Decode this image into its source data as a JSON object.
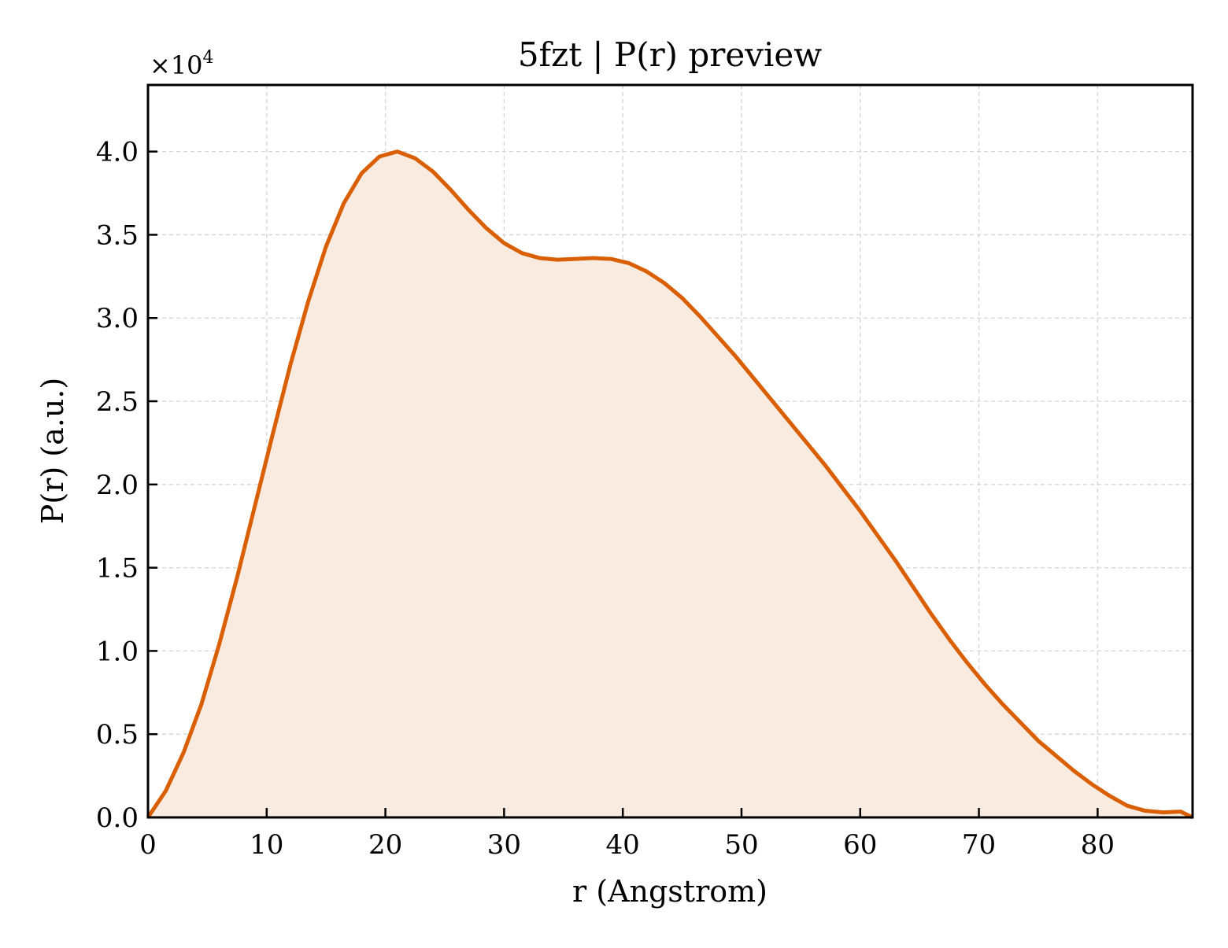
{
  "chart_data": {
    "type": "area",
    "title": "5fzt | P(r) preview",
    "xlabel": "r (Angstrom)",
    "ylabel": "P(r) (a.u.)",
    "y_multiplier": "×10",
    "y_multiplier_exp": "4",
    "xlim": [
      0,
      88
    ],
    "ylim": [
      0,
      4.4
    ],
    "y_scale_factor": 10000,
    "grid": true,
    "x_ticks": [
      0,
      10,
      20,
      30,
      40,
      50,
      60,
      70,
      80
    ],
    "x_tick_labels": [
      "0",
      "10",
      "20",
      "30",
      "40",
      "50",
      "60",
      "70",
      "80"
    ],
    "y_ticks": [
      0,
      0.5,
      1.0,
      1.5,
      2.0,
      2.5,
      3.0,
      3.5,
      4.0
    ],
    "y_tick_labels": [
      "0.0",
      "0.5",
      "1.0",
      "1.5",
      "2.0",
      "2.5",
      "3.0",
      "3.5",
      "4.0"
    ],
    "series": [
      {
        "line_color": "#d95f02",
        "fill_color": "#f9ebe0",
        "x": [
          0,
          1.5,
          3,
          4.5,
          6,
          7.5,
          9,
          10.5,
          12,
          13.5,
          15,
          16.5,
          18,
          19.5,
          21,
          22.5,
          24,
          25.5,
          27,
          28.5,
          30,
          31.5,
          33,
          34.5,
          36,
          37.5,
          39,
          40.5,
          42,
          43.5,
          45,
          46.5,
          48,
          49.5,
          51,
          52.5,
          54,
          55.5,
          57,
          58.5,
          60,
          61.5,
          63,
          64.5,
          66,
          67.5,
          69,
          70.5,
          72,
          73.5,
          75,
          76.5,
          78,
          79.5,
          81,
          82.5,
          84,
          85.5,
          87,
          88
        ],
        "y": [
          0.0,
          0.16,
          0.39,
          0.68,
          1.04,
          1.44,
          1.87,
          2.3,
          2.72,
          3.1,
          3.43,
          3.69,
          3.87,
          3.97,
          4.0,
          3.96,
          3.88,
          3.77,
          3.65,
          3.54,
          3.45,
          3.39,
          3.36,
          3.35,
          3.355,
          3.36,
          3.355,
          3.33,
          3.28,
          3.21,
          3.12,
          3.01,
          2.89,
          2.77,
          2.64,
          2.51,
          2.38,
          2.25,
          2.12,
          1.98,
          1.84,
          1.69,
          1.54,
          1.38,
          1.22,
          1.07,
          0.93,
          0.8,
          0.68,
          0.57,
          0.46,
          0.37,
          0.28,
          0.2,
          0.13,
          0.07,
          0.04,
          0.03,
          0.035,
          0.0
        ]
      }
    ]
  }
}
